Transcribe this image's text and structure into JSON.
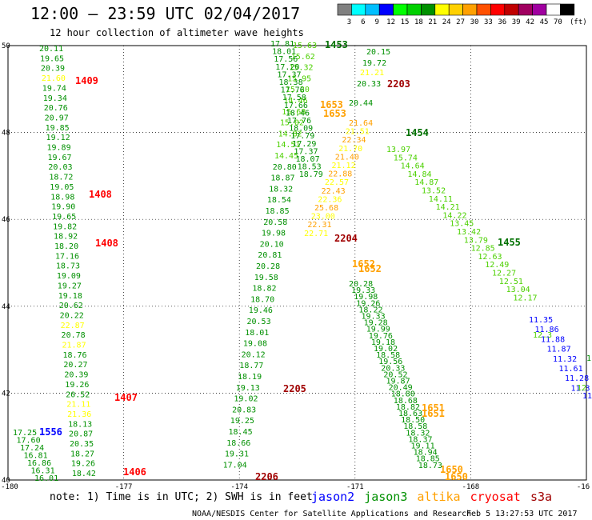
{
  "header": {
    "title": "12:00 – 23:59 UTC 02/04/2017",
    "subtitle": "12 hour collection of altimeter wave heights",
    "unit_label": "(ft)"
  },
  "legend": {
    "colors": [
      "#808080",
      "#00ffff",
      "#00bfff",
      "#0000ff",
      "#00ff00",
      "#00d000",
      "#009000",
      "#ffff00",
      "#ffd000",
      "#ffa000",
      "#ff5000",
      "#ff0000",
      "#c00000",
      "#a00060",
      "#a000a0",
      "#ffffff",
      "#000000"
    ],
    "labels": [
      "3",
      "6",
      "9",
      "12",
      "15",
      "18",
      "21",
      "24",
      "27",
      "30",
      "33",
      "36",
      "39",
      "42",
      "45",
      "70"
    ]
  },
  "axes": {
    "x_ticks": [
      "-180",
      "-177",
      "-174",
      "-171",
      "-168",
      "-16"
    ],
    "y_ticks": [
      "50",
      "48",
      "46",
      "44",
      "42",
      "40"
    ]
  },
  "colors": {
    "green": "#009000",
    "light_green": "#4cd000",
    "yellow": "#ffff00",
    "orange": "#ffa000",
    "red": "#ff0000",
    "dark_red": "#a00000",
    "blue": "#0000ff",
    "dark_green": "#007000"
  },
  "tracks": {
    "left": {
      "values": [
        {
          "v": "20.11",
          "c": "green"
        },
        {
          "v": "19.65",
          "c": "green"
        },
        {
          "v": "20.39",
          "c": "green"
        },
        {
          "v": "21.60",
          "c": "yellow"
        },
        {
          "v": "19.74",
          "c": "green"
        },
        {
          "v": "19.34",
          "c": "green"
        },
        {
          "v": "20.76",
          "c": "green"
        },
        {
          "v": "20.97",
          "c": "green"
        },
        {
          "v": "19.85",
          "c": "green"
        },
        {
          "v": "19.12",
          "c": "green"
        },
        {
          "v": "19.89",
          "c": "green"
        },
        {
          "v": "19.67",
          "c": "green"
        },
        {
          "v": "20.03",
          "c": "green"
        },
        {
          "v": "18.72",
          "c": "green"
        },
        {
          "v": "19.05",
          "c": "green"
        },
        {
          "v": "18.98",
          "c": "green"
        },
        {
          "v": "19.90",
          "c": "green"
        },
        {
          "v": "19.65",
          "c": "green"
        },
        {
          "v": "19.82",
          "c": "green"
        },
        {
          "v": "18.92",
          "c": "green"
        },
        {
          "v": "18.20",
          "c": "green"
        },
        {
          "v": "17.16",
          "c": "green"
        },
        {
          "v": "18.73",
          "c": "green"
        },
        {
          "v": "19.09",
          "c": "green"
        },
        {
          "v": "19.27",
          "c": "green"
        },
        {
          "v": "19.18",
          "c": "green"
        },
        {
          "v": "20.62",
          "c": "green"
        },
        {
          "v": "20.22",
          "c": "green"
        },
        {
          "v": "22.87",
          "c": "yellow"
        },
        {
          "v": "20.78",
          "c": "green"
        },
        {
          "v": "21.87",
          "c": "yellow"
        },
        {
          "v": "18.76",
          "c": "green"
        },
        {
          "v": "20.27",
          "c": "green"
        },
        {
          "v": "20.39",
          "c": "green"
        },
        {
          "v": "19.26",
          "c": "green"
        },
        {
          "v": "20.52",
          "c": "green"
        },
        {
          "v": "21.11",
          "c": "yellow"
        },
        {
          "v": "21.36",
          "c": "yellow"
        },
        {
          "v": "18.13",
          "c": "green"
        },
        {
          "v": "20.87",
          "c": "green"
        },
        {
          "v": "20.35",
          "c": "green"
        },
        {
          "v": "18.27",
          "c": "green"
        },
        {
          "v": "19.26",
          "c": "green"
        },
        {
          "v": "18.42",
          "c": "green"
        }
      ],
      "passes": [
        "1409",
        "1408",
        "1408",
        "1407",
        "1406"
      ]
    },
    "sw_corner": [
      "17.25",
      "17.60",
      "17.24",
      "16.81",
      "16.86",
      "16.31",
      "16.01"
    ],
    "sw_pass": "1556",
    "middle": {
      "values": [
        "15.63",
        "15.62",
        "15.32",
        "15.95",
        "15.20",
        "14.46",
        "15.68",
        "15.02",
        "14.82",
        "14.51",
        "14.45",
        "20.80",
        "18.87",
        "18.32",
        "18.54",
        "18.85",
        "20.58",
        "19.98",
        "20.10",
        "20.81",
        "20.28",
        "19.58",
        "18.82",
        "18.70",
        "19.46",
        "20.53",
        "18.01",
        "19.08",
        "20.12",
        "18.77",
        "18.19",
        "19.13",
        "19.02",
        "20.83",
        "19.25",
        "18.45",
        "18.66",
        "19.31",
        "17.04"
      ],
      "passes": [
        "1453",
        "1653",
        "1653",
        "2204",
        "2205",
        "2206"
      ]
    },
    "right_middle": {
      "values": [
        "20.15",
        "19.72",
        "21.21",
        "20.33",
        "20.44",
        "13.97",
        "15.74",
        "14.64",
        "14.84",
        "14.87",
        "13.52",
        "14.11",
        "14.21",
        "14.22",
        "13.45",
        "13.42",
        "13.79",
        "12.85",
        "12.63",
        "12.49",
        "12.27",
        "12.51",
        "13.04",
        "12.17"
      ],
      "passes": [
        "2203",
        "1454",
        "1455",
        "1652",
        "1652",
        "1651",
        "1651",
        "1650",
        "1650"
      ]
    },
    "lower_diag": [
      "20.28",
      "19.33",
      "19.98",
      "19.26",
      "18.22",
      "19.33",
      "19.28",
      "19.99",
      "19.76",
      "19.18",
      "19.02",
      "18.58",
      "19.56",
      "20.33",
      "20.52",
      "19.87",
      "20.49",
      "18.80",
      "18.68",
      "18.82",
      "18.63",
      "18.50",
      "18.58",
      "18.32",
      "18.37",
      "19.11",
      "18.94",
      "18.85",
      "18.73"
    ],
    "blue": [
      "11.35",
      "11.86",
      "11.88",
      "11.87",
      "11.32",
      "11.61",
      "11.28",
      "11.3"
    ],
    "blue_green": [
      "12.3",
      "1",
      "12",
      "11"
    ]
  },
  "footer": {
    "note": "note: 1) Time is in UTC; 2) SWH is in feet",
    "satellites": [
      {
        "name": "jason2",
        "color": "#0000ff"
      },
      {
        "name": "jason3",
        "color": "#009000"
      },
      {
        "name": "altika",
        "color": "#ffa000"
      },
      {
        "name": "cryosat",
        "color": "#ff0000"
      },
      {
        "name": "s3a",
        "color": "#a00000"
      }
    ],
    "credit": "NOAA/NESDIS Center for Satellite Applications and Research",
    "timestamp": "Feb  5 13:27:53 UTC 2017"
  }
}
